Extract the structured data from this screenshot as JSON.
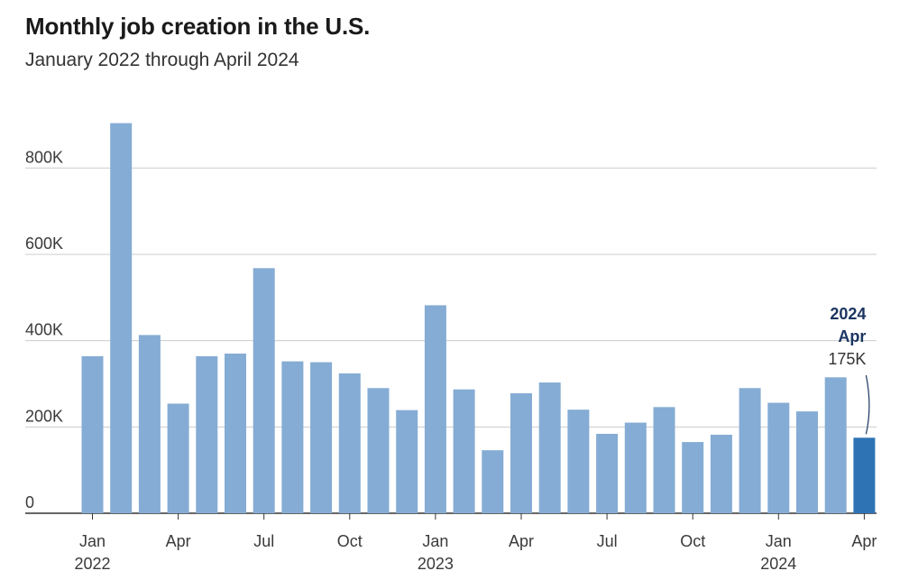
{
  "chart_data": {
    "type": "bar",
    "title": "Monthly job creation in the U.S.",
    "subtitle": "January 2022 through April 2024",
    "xlabel": "",
    "ylabel": "",
    "ylim": [
      0,
      900
    ],
    "yticks": [
      0,
      200,
      400,
      600,
      800
    ],
    "ytick_labels": [
      "0",
      "200K",
      "400K",
      "600K",
      "800K"
    ],
    "categories": [
      "Jan 2022",
      "Feb 2022",
      "Mar 2022",
      "Apr 2022",
      "May 2022",
      "Jun 2022",
      "Jul 2022",
      "Aug 2022",
      "Sep 2022",
      "Oct 2022",
      "Nov 2022",
      "Dec 2022",
      "Jan 2023",
      "Feb 2023",
      "Mar 2023",
      "Apr 2023",
      "May 2023",
      "Jun 2023",
      "Jul 2023",
      "Aug 2023",
      "Sep 2023",
      "Oct 2023",
      "Nov 2023",
      "Dec 2023",
      "Jan 2024",
      "Feb 2024",
      "Mar 2024",
      "Apr 2024"
    ],
    "values": [
      364,
      904,
      413,
      254,
      364,
      370,
      568,
      352,
      350,
      324,
      290,
      239,
      482,
      287,
      146,
      278,
      303,
      240,
      184,
      210,
      246,
      165,
      182,
      290,
      256,
      236,
      315,
      175
    ],
    "highlight_index": 27,
    "x_ticks": [
      {
        "index": 0,
        "month": "Jan",
        "year": "2022"
      },
      {
        "index": 3,
        "month": "Apr",
        "year": ""
      },
      {
        "index": 6,
        "month": "Jul",
        "year": ""
      },
      {
        "index": 9,
        "month": "Oct",
        "year": ""
      },
      {
        "index": 12,
        "month": "Jan",
        "year": "2023"
      },
      {
        "index": 15,
        "month": "Apr",
        "year": ""
      },
      {
        "index": 18,
        "month": "Jul",
        "year": ""
      },
      {
        "index": 21,
        "month": "Oct",
        "year": ""
      },
      {
        "index": 24,
        "month": "Jan",
        "year": "2024"
      },
      {
        "index": 27,
        "month": "Apr",
        "year": ""
      }
    ],
    "annotation": {
      "year": "2024",
      "month": "Apr",
      "value_label": "175K"
    },
    "grid": true,
    "legend": "none"
  },
  "colors": {
    "bar": "#85acd4",
    "highlight": "#2e74b5",
    "annotation": "#1b3561",
    "grid": "#cccccc",
    "axis": "#333333"
  }
}
